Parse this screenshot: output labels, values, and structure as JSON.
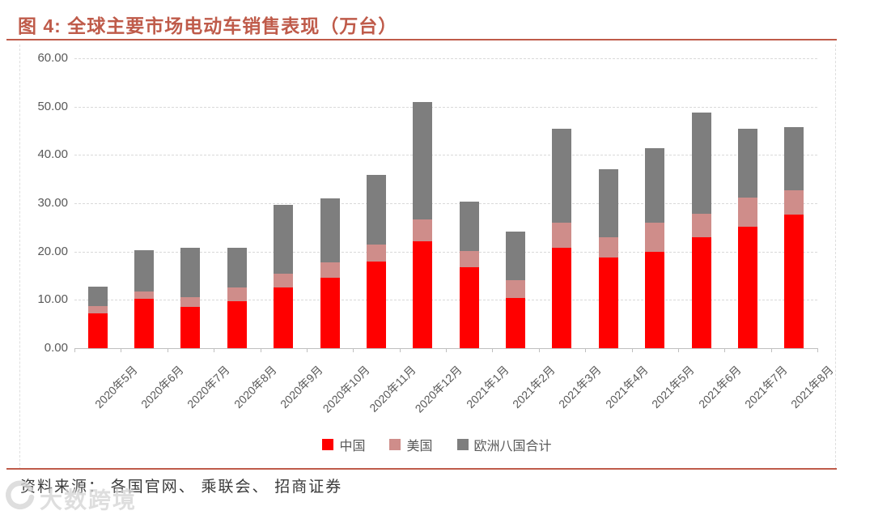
{
  "header": {
    "title": "图 4:  全球主要市场电动车销售表现（万台）",
    "accent_color": "#BF5B4A"
  },
  "chart_data": {
    "type": "bar",
    "stacked": true,
    "title": "全球主要市场电动车销售表现（万台）",
    "xlabel": "",
    "ylabel": "",
    "ylim": [
      0,
      60
    ],
    "ytick_step": 10,
    "ytick_labels": [
      "0.00",
      "10.00",
      "20.00",
      "30.00",
      "40.00",
      "50.00",
      "60.00"
    ],
    "grid": "horizontal-dashed",
    "legend_position": "bottom",
    "categories": [
      "2020年5月",
      "2020年6月",
      "2020年7月",
      "2020年8月",
      "2020年9月",
      "2020年10月",
      "2020年11月",
      "2020年12月",
      "2021年1月",
      "2021年2月",
      "2021年3月",
      "2021年4月",
      "2021年5月",
      "2021年6月",
      "2021年7月",
      "2021年8月"
    ],
    "series": [
      {
        "key": "china",
        "name": "中国",
        "color": "#FF0000",
        "values": [
          7.2,
          10.2,
          8.6,
          9.7,
          12.5,
          14.5,
          18.0,
          22.2,
          16.8,
          10.4,
          20.7,
          18.7,
          20.0,
          22.9,
          25.1,
          27.7
        ]
      },
      {
        "key": "usa",
        "name": "美国",
        "color": "#CF8D8A",
        "values": [
          1.5,
          1.6,
          2.0,
          2.8,
          3.0,
          3.3,
          3.5,
          4.4,
          3.3,
          3.6,
          5.3,
          4.2,
          6.0,
          5.0,
          6.1,
          5.0
        ]
      },
      {
        "key": "europe8",
        "name": "欧洲八国合计",
        "color": "#7E7E7E",
        "values": [
          4.0,
          8.5,
          10.2,
          8.3,
          14.2,
          13.2,
          14.4,
          24.4,
          10.3,
          10.2,
          19.5,
          14.2,
          15.4,
          20.8,
          14.3,
          13.1
        ]
      }
    ]
  },
  "footer": {
    "source": "资料来源： 各国官网、 乘联会、 招商证券"
  },
  "watermark": {
    "text": "大数跨境",
    "icon": "circular-arrow-logo"
  }
}
